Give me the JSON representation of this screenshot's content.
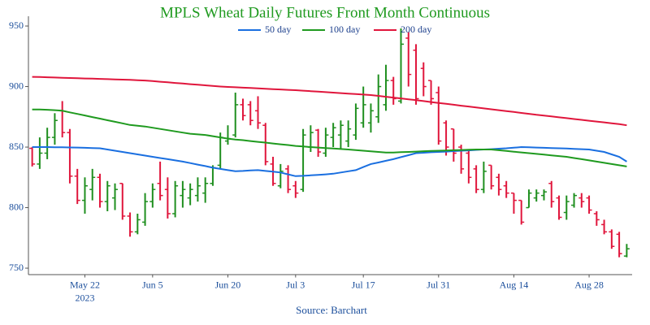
{
  "chart_data": {
    "type": "ohlc",
    "title": "MPLS Wheat Daily Futures Front Month Continuous",
    "source": "Source: Barchart",
    "x_sublabel": "2023",
    "categories": [
      null,
      null,
      null,
      null,
      null,
      null,
      null,
      "May 22",
      null,
      null,
      null,
      null,
      null,
      null,
      null,
      null,
      "Jun 5",
      null,
      null,
      null,
      null,
      null,
      null,
      null,
      null,
      null,
      "Jun 20",
      null,
      null,
      null,
      null,
      null,
      null,
      null,
      null,
      "Jul 3",
      null,
      null,
      null,
      null,
      null,
      null,
      null,
      null,
      "Jul 17",
      null,
      null,
      null,
      null,
      null,
      null,
      null,
      null,
      null,
      "Jul 31",
      null,
      null,
      null,
      null,
      null,
      null,
      null,
      null,
      null,
      "Aug 14",
      null,
      null,
      null,
      null,
      null,
      null,
      null,
      null,
      null,
      "Aug 28",
      null,
      null,
      null,
      null,
      null
    ],
    "open": [
      849,
      836,
      845,
      858,
      880,
      862,
      826,
      806,
      815,
      825,
      805,
      808,
      820,
      793,
      780,
      788,
      805,
      820,
      815,
      795,
      810,
      808,
      810,
      812,
      820,
      835,
      855,
      860,
      885,
      885,
      880,
      868,
      836,
      818,
      832,
      818,
      815,
      850,
      864,
      845,
      858,
      860,
      855,
      860,
      870,
      870,
      875,
      885,
      905,
      888,
      940,
      930,
      915,
      905,
      895,
      870,
      865,
      850,
      845,
      832,
      815,
      835,
      825,
      818,
      812,
      806,
      800,
      808,
      810,
      820,
      808,
      796,
      802,
      808,
      808,
      795,
      786,
      780,
      778,
      760
    ],
    "high": [
      850,
      858,
      866,
      878,
      888,
      865,
      832,
      825,
      832,
      828,
      822,
      820,
      820,
      796,
      795,
      812,
      820,
      838,
      825,
      822,
      822,
      820,
      825,
      825,
      835,
      862,
      868,
      895,
      890,
      888,
      892,
      870,
      842,
      836,
      835,
      822,
      865,
      868,
      865,
      866,
      870,
      872,
      872,
      886,
      900,
      886,
      910,
      918,
      908,
      948,
      945,
      935,
      920,
      905,
      900,
      872,
      865,
      852,
      848,
      835,
      838,
      835,
      828,
      822,
      812,
      806,
      815,
      815,
      815,
      822,
      810,
      810,
      812,
      812,
      810,
      797,
      790,
      782,
      780,
      770
    ],
    "low": [
      834,
      832,
      840,
      852,
      858,
      820,
      803,
      795,
      806,
      800,
      797,
      798,
      790,
      776,
      778,
      785,
      800,
      806,
      791,
      792,
      800,
      802,
      805,
      804,
      818,
      832,
      852,
      858,
      872,
      868,
      865,
      835,
      818,
      816,
      812,
      808,
      813,
      846,
      842,
      842,
      850,
      848,
      850,
      856,
      866,
      862,
      870,
      880,
      885,
      886,
      900,
      885,
      892,
      885,
      852,
      843,
      838,
      828,
      820,
      812,
      812,
      815,
      810,
      808,
      795,
      786,
      800,
      805,
      806,
      800,
      790,
      790,
      800,
      800,
      795,
      785,
      778,
      766,
      759,
      759
    ],
    "close": [
      836,
      845,
      858,
      872,
      862,
      826,
      806,
      818,
      825,
      805,
      818,
      815,
      793,
      780,
      790,
      805,
      815,
      810,
      795,
      818,
      815,
      815,
      818,
      820,
      833,
      858,
      857,
      885,
      876,
      872,
      870,
      838,
      820,
      830,
      815,
      812,
      860,
      862,
      846,
      860,
      866,
      868,
      865,
      882,
      885,
      880,
      900,
      905,
      890,
      935,
      910,
      890,
      900,
      890,
      855,
      850,
      845,
      832,
      825,
      815,
      830,
      818,
      815,
      812,
      806,
      788,
      812,
      812,
      813,
      805,
      792,
      805,
      810,
      805,
      798,
      790,
      780,
      768,
      762,
      766
    ],
    "up_color": "#1f8f1f",
    "down_color": "#e0163c",
    "series": [
      {
        "name": "50 day",
        "color": "#1a6fe0",
        "values": [
          850,
          850,
          850,
          849.9,
          849.8,
          849.7,
          849.6,
          849.4,
          849.2,
          849,
          848,
          847,
          846,
          845,
          844,
          843,
          842,
          841,
          840,
          839,
          838,
          836.8,
          835.5,
          834.3,
          833,
          832,
          831,
          830,
          830.3,
          830.7,
          831,
          830.3,
          829.7,
          829,
          827.5,
          826,
          826.3,
          826.7,
          827,
          827.5,
          828,
          829,
          830,
          831,
          833.5,
          836,
          837.3,
          838.7,
          840,
          841.7,
          843.3,
          845,
          845.3,
          845.7,
          846,
          846.3,
          846.7,
          847,
          847.3,
          847.7,
          848,
          848.3,
          848.7,
          849,
          849.5,
          850,
          849.8,
          849.6,
          849.4,
          849.2,
          849,
          848.8,
          848.5,
          848.3,
          848,
          847,
          846,
          844,
          842,
          838
        ]
      },
      {
        "name": "100 day",
        "color": "#1f9a1f",
        "values": [
          881,
          881,
          880.8,
          880.5,
          880,
          878.7,
          877.4,
          876.1,
          874.8,
          873.5,
          872.2,
          870.9,
          869.6,
          868.3,
          867.6,
          867,
          866,
          865,
          864,
          863,
          862,
          861,
          860.5,
          860,
          859,
          858,
          857,
          856.3,
          855.7,
          855,
          854.3,
          853.7,
          853,
          852.3,
          851.7,
          851,
          850.5,
          850,
          849.6,
          849.2,
          848.8,
          848.4,
          848,
          847.5,
          847,
          846.5,
          846,
          845.5,
          845.5,
          845.8,
          846,
          846.3,
          846.6,
          846.8,
          847,
          847.2,
          847.4,
          847.6,
          847.8,
          848,
          848,
          848,
          847.4,
          846.8,
          846.2,
          845.6,
          845,
          844.4,
          843.8,
          843.2,
          842.6,
          842,
          841,
          840,
          839,
          838,
          837,
          836,
          835,
          834
        ]
      },
      {
        "name": "200 day",
        "color": "#e0163c",
        "values": [
          908,
          907.9,
          907.7,
          907.5,
          907.3,
          907.1,
          906.9,
          906.7,
          906.5,
          906.3,
          906.1,
          905.9,
          905.7,
          905.5,
          905.2,
          905,
          904.5,
          904,
          903.5,
          903,
          902.5,
          902,
          901.5,
          901,
          900.5,
          900,
          899.7,
          899.4,
          899.1,
          898.8,
          898.5,
          898.2,
          897.9,
          897.6,
          897.3,
          897,
          896.6,
          896.2,
          895.8,
          895.4,
          895,
          894.6,
          894.2,
          893.8,
          893.4,
          893,
          892.3,
          891.6,
          890.9,
          890.2,
          889.5,
          888.8,
          888,
          887.2,
          886.5,
          885.7,
          885,
          884.2,
          883.5,
          882.7,
          882,
          881.2,
          880.5,
          879.7,
          879,
          878.2,
          877.5,
          876.7,
          876,
          875.3,
          874.6,
          873.9,
          873.2,
          872.5,
          871.8,
          871.1,
          870.4,
          869.7,
          869,
          868
        ]
      }
    ],
    "ylim": [
      745,
      957
    ],
    "yticks": [
      750,
      800,
      850,
      900,
      950
    ]
  }
}
